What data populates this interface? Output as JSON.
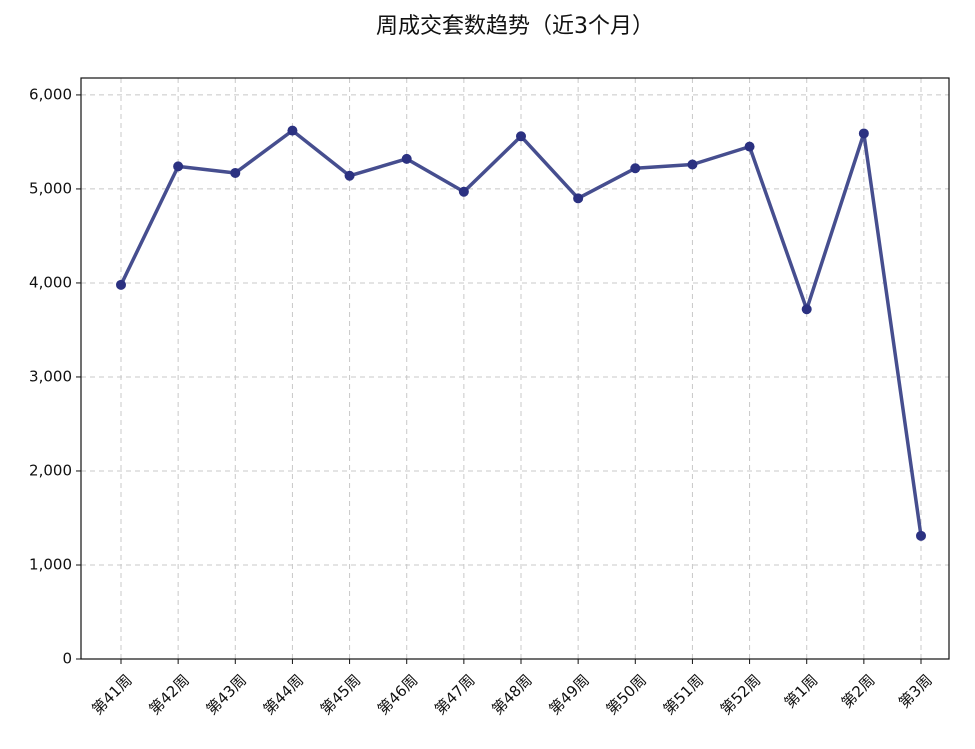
{
  "chart_data": {
    "type": "line",
    "title": "周成交套数趋势（近3个月）",
    "categories": [
      "第41周",
      "第42周",
      "第43周",
      "第44周",
      "第45周",
      "第46周",
      "第47周",
      "第48周",
      "第49周",
      "第50周",
      "第51周",
      "第52周",
      "第1周",
      "第2周",
      "第3周"
    ],
    "series": [
      {
        "name": "周成交套数",
        "color": "#464e8f",
        "marker_color": "#2b3181",
        "values": [
          3980,
          5240,
          5170,
          5620,
          5140,
          5320,
          4970,
          5560,
          4900,
          5220,
          5260,
          5450,
          3720,
          5590,
          1310
        ]
      }
    ],
    "ylim": [
      0,
      6180
    ],
    "yticks": [
      0,
      {
        "value": 1000,
        "label": "1,000"
      },
      {
        "value": 2000,
        "label": "2,000"
      },
      {
        "value": 3000,
        "label": "3,000"
      },
      {
        "value": 4000,
        "label": "4,000"
      },
      {
        "value": 5000,
        "label": "5,000"
      },
      {
        "value": 6000,
        "label": "6,000"
      }
    ],
    "grid": true
  }
}
